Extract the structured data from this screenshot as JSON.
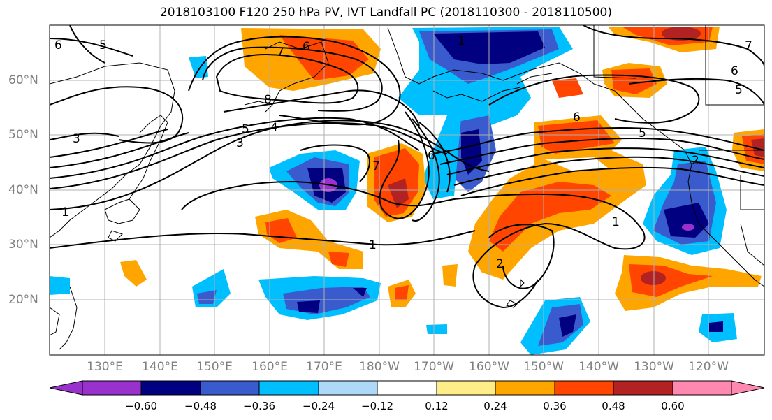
{
  "title": "2018103100 F120 250 hPa PV, IVT Landfall PC (2018110300 - 2018110500)",
  "lon_labels": [
    "130°E",
    "140°E",
    "150°E",
    "160°E",
    "170°E",
    "180°W",
    "170°W",
    "160°W",
    "150°W",
    "140°W",
    "130°W",
    "120°W"
  ],
  "lat_labels": [
    "60°N",
    "50°N",
    "40°N",
    "30°N",
    "20°N"
  ],
  "colorbar": {
    "colors": [
      "#9932cc",
      "#000080",
      "#3a5bcd",
      "#00bfff",
      "#add8f7",
      "#ffffff",
      "#ffee88",
      "#ffa500",
      "#ff4500",
      "#b22222",
      "#ff88b0"
    ],
    "tick_labels": [
      "−0.60",
      "−0.48",
      "−0.36",
      "−0.24",
      "−0.12",
      "0.12",
      "0.24",
      "0.36",
      "0.48",
      "0.60"
    ]
  },
  "contour_labels": [
    "6",
    "5",
    "7",
    "6",
    "8",
    "5",
    "4",
    "3",
    "3",
    "1",
    "1",
    "6",
    "7",
    "6",
    "5",
    "2",
    "1",
    "2",
    "7",
    "6",
    "5",
    "1"
  ]
}
